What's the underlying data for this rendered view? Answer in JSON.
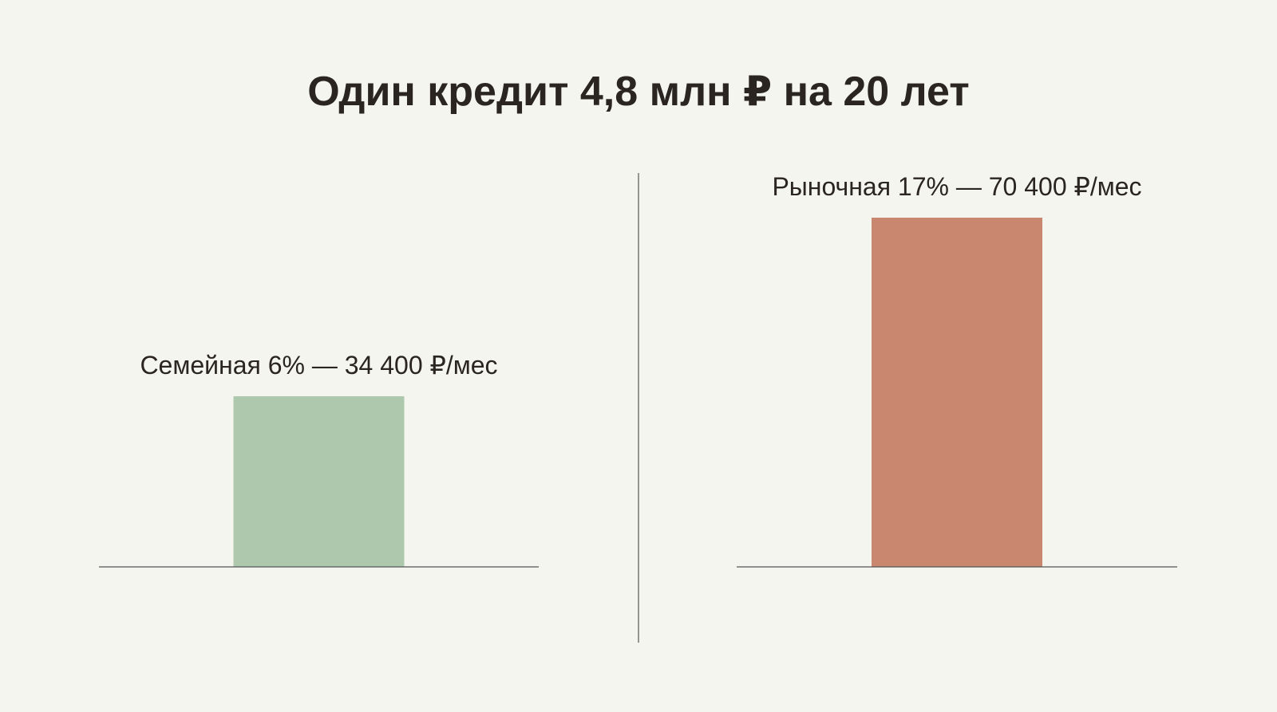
{
  "chart_data": {
    "type": "bar",
    "title": "Один кредит 4,8 млн ₽ на 20 лет",
    "categories": [
      "Семейная 6% — 34 400 ₽/мес",
      "Рыночная 17% — 70 400 ₽/мес"
    ],
    "values": [
      34400,
      70400
    ],
    "colors": [
      "#aec8ad",
      "#c9876f"
    ]
  }
}
